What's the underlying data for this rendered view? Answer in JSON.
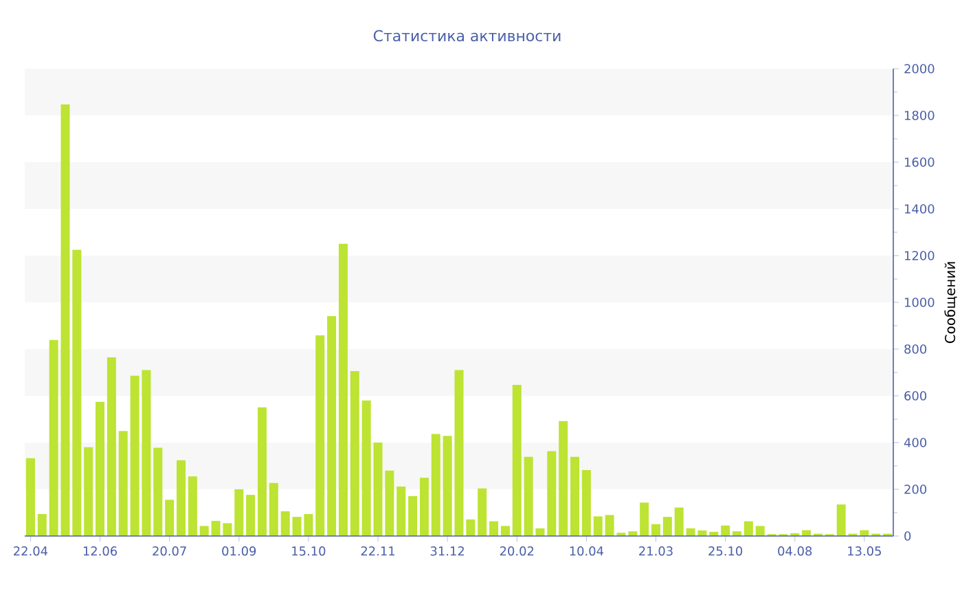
{
  "chart_data": {
    "type": "bar",
    "title": "Статистика активности",
    "ylabel": "Сообщений",
    "categories": [
      "22.04",
      null,
      null,
      null,
      null,
      null,
      "12.06",
      null,
      null,
      null,
      null,
      null,
      "20.07",
      null,
      null,
      null,
      null,
      null,
      "01.09",
      null,
      null,
      null,
      null,
      null,
      "15.10",
      null,
      null,
      null,
      null,
      null,
      "22.11",
      null,
      null,
      null,
      null,
      null,
      "31.12",
      null,
      null,
      null,
      null,
      null,
      "20.02",
      null,
      null,
      null,
      null,
      null,
      "10.04",
      null,
      null,
      null,
      null,
      null,
      "21.03",
      null,
      null,
      null,
      null,
      null,
      "25.10",
      null,
      null,
      null,
      null,
      null,
      "04.08",
      null,
      null,
      null,
      null,
      null,
      "13.05",
      null,
      null
    ],
    "values": [
      333,
      94,
      839,
      1847,
      1225,
      380,
      574,
      765,
      449,
      686,
      710,
      378,
      155,
      324,
      255,
      43,
      65,
      55,
      200,
      176,
      551,
      227,
      106,
      82,
      94,
      859,
      941,
      1251,
      706,
      580,
      400,
      280,
      212,
      171,
      249,
      437,
      429,
      710,
      71,
      204,
      63,
      43,
      647,
      339,
      33,
      363,
      492,
      339,
      282,
      84,
      90,
      14,
      20,
      143,
      51,
      82,
      122,
      33,
      24,
      18,
      45,
      20,
      63,
      43,
      8,
      8,
      12,
      25,
      10,
      8,
      135,
      10,
      25,
      10,
      10
    ],
    "color": "#bde333",
    "ylim": [
      0,
      2000
    ],
    "yticks": [
      0,
      200,
      400,
      600,
      800,
      1000,
      1200,
      1400,
      1600,
      1800,
      2000
    ]
  }
}
